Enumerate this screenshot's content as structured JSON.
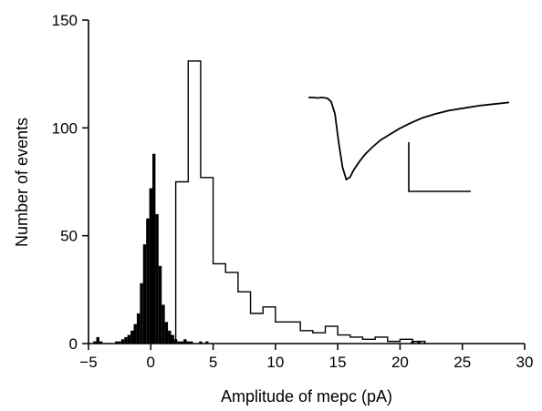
{
  "chart_data": {
    "type": "bar",
    "xlabel": "Amplitude of mepc (pA)",
    "ylabel": "Number of events",
    "xlim": [
      -5,
      30
    ],
    "ylim": [
      0,
      150
    ],
    "x_ticks": [
      "−5",
      "0",
      "5",
      "10",
      "15",
      "20",
      "25",
      "30"
    ],
    "y_ticks": [
      "0",
      "50",
      "100",
      "150"
    ],
    "grid": false,
    "legend": "none",
    "series": [
      {
        "style": "filled-histogram",
        "bin_width": 0.25,
        "bin_centers": [
          -4.5,
          -4.25,
          -4.0,
          -3.75,
          -3.5,
          -3.25,
          -3.0,
          -2.75,
          -2.5,
          -2.25,
          -2.0,
          -1.75,
          -1.5,
          -1.25,
          -1.0,
          -0.75,
          -0.5,
          -0.25,
          0.0,
          0.25,
          0.5,
          0.75,
          1.0,
          1.25,
          1.5,
          1.75,
          2.0,
          2.25,
          2.5,
          2.75,
          3.0,
          3.25,
          3.5,
          3.75,
          4.0,
          4.25,
          4.5,
          21.0,
          21.25,
          21.5,
          21.75
        ],
        "values": [
          1,
          3,
          1,
          0,
          0,
          0,
          0,
          1,
          1,
          2,
          3,
          4,
          6,
          9,
          14,
          28,
          46,
          58,
          72,
          88,
          60,
          36,
          18,
          10,
          6,
          4,
          2,
          1,
          1,
          2,
          1,
          1,
          0,
          0,
          1,
          0,
          1,
          1,
          0,
          1,
          0
        ]
      },
      {
        "style": "open-step-histogram",
        "bin_width": 1,
        "bin_edges": [
          2,
          3,
          4,
          5,
          6,
          7,
          8,
          9,
          10,
          11,
          12,
          13,
          14,
          15,
          16,
          17,
          18,
          19,
          20,
          21,
          22
        ],
        "values": [
          75,
          131,
          77,
          37,
          33,
          24,
          14,
          17,
          10,
          10,
          6,
          5,
          8,
          4,
          3,
          2,
          3,
          1,
          2,
          1
        ]
      }
    ],
    "inset": {
      "description_trace": "mepc waveform",
      "trace": [
        [
          0,
          0
        ],
        [
          5,
          0
        ],
        [
          10,
          0.5
        ],
        [
          14,
          0
        ],
        [
          18,
          0.5
        ],
        [
          20,
          1
        ],
        [
          24,
          5
        ],
        [
          28,
          20
        ],
        [
          32,
          55
        ],
        [
          36,
          85
        ],
        [
          40,
          100
        ],
        [
          44,
          97
        ],
        [
          48,
          88
        ],
        [
          54,
          78
        ],
        [
          60,
          69
        ],
        [
          68,
          60
        ],
        [
          76,
          52
        ],
        [
          86,
          45
        ],
        [
          96,
          38
        ],
        [
          108,
          31
        ],
        [
          120,
          25
        ],
        [
          134,
          20
        ],
        [
          148,
          16
        ],
        [
          164,
          13
        ],
        [
          180,
          10
        ],
        [
          196,
          8
        ],
        [
          212,
          6
        ]
      ],
      "scale_bar": true
    }
  }
}
